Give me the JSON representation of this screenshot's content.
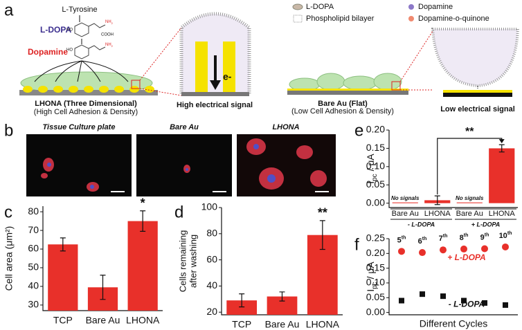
{
  "diagram": {
    "panel_label": "a",
    "precursor": "L-Tyrosine",
    "ldopa": "L-DOPA",
    "dopamine": "Dopamine",
    "ho": "HO",
    "nh2": "NH",
    "two": "2",
    "cooh": "COOH",
    "lhona_title": "LHONA (Three Dimensional)",
    "lhona_sub": "(High Cell Adhesion & Density)",
    "high_signal": "High electrical signal",
    "electron": "e-",
    "bare_title": "Bare Au (Flat)",
    "bare_sub": "(Low Cell Adhesion & Density)",
    "low_signal": "Low electrical signal",
    "legend": [
      "L-DOPA",
      "Dopamine",
      "Phospholipid bilayer",
      "Dopamine-o-quinone"
    ]
  },
  "micrographs": {
    "panel_label": "b",
    "titles": [
      "Tissue Culture plate",
      "Bare Au",
      "LHONA"
    ]
  },
  "chart_data": [
    {
      "type": "bar",
      "panel_label": "c",
      "ylabel": "Cell area (μm²)",
      "categories": [
        "TCP",
        "Bare Au",
        "LHONA"
      ],
      "values": [
        62.5,
        39.5,
        75
      ],
      "errors": [
        3.5,
        6.5,
        5.5
      ],
      "color": "#e8302a",
      "ylim": [
        27,
        83
      ],
      "yticks": [
        30,
        40,
        50,
        60,
        70,
        80
      ],
      "annotation": "*"
    },
    {
      "type": "bar",
      "panel_label": "d",
      "ylabel": [
        "Cells remaining",
        "after washing"
      ],
      "categories": [
        "TCP",
        "Bare Au",
        "LHONA"
      ],
      "values": [
        29,
        32,
        79
      ],
      "errors": [
        5,
        3.5,
        11
      ],
      "color": "#e8302a",
      "ylim": [
        18,
        100
      ],
      "yticks": [
        20,
        40,
        60,
        80,
        100
      ],
      "annotation": "**"
    },
    {
      "type": "bar",
      "panel_label": "e",
      "ylabel": {
        "main": "I",
        "sub": "pc",
        "unit": " / μA"
      },
      "categories": [
        "Bare Au",
        "LHONA",
        "Bare Au",
        "LHONA"
      ],
      "values": [
        0.002,
        0.008,
        0.002,
        0.15
      ],
      "errors": [
        null,
        0.012,
        null,
        0.01
      ],
      "notes": [
        "No signals",
        null,
        "No signals",
        null
      ],
      "groups": [
        "- L-DOPA",
        "+ L-DOPA"
      ],
      "color": "#e8302a",
      "ylim": [
        -0.012,
        0.2
      ],
      "yticks": [
        {
          "value": 0,
          "label": "0.00"
        },
        {
          "value": 0.05,
          "label": "0.05"
        },
        {
          "value": 0.1,
          "label": "0.10"
        },
        {
          "value": 0.15,
          "label": "0.15"
        },
        {
          "value": 0.2,
          "label": "0.20"
        }
      ],
      "annotation": "**"
    },
    {
      "type": "scatter",
      "panel_label": "f",
      "ylabel": {
        "main": "I",
        "sub": "pc",
        "unit": " / μA"
      },
      "xlabel": "Different Cycles",
      "x": [
        5,
        6,
        7,
        8,
        9,
        10
      ],
      "ordinal_suffix": "th",
      "xlim": [
        4.4,
        10.6
      ],
      "series": [
        {
          "name": "+ L-DOPA",
          "color": "#e8302a",
          "marker": "circle",
          "values": [
            0.207,
            0.203,
            0.212,
            0.215,
            0.216,
            0.222
          ]
        },
        {
          "name": "- L-DOPA",
          "color": "#111111",
          "marker": "square",
          "values": [
            0.04,
            0.062,
            0.055,
            0.04,
            0.032,
            0.025
          ]
        }
      ],
      "ylim": [
        -0.008,
        0.25
      ],
      "yticks": [
        {
          "value": 0,
          "label": "0.00"
        },
        {
          "value": 0.05,
          "label": "0.05"
        },
        {
          "value": 0.1,
          "label": "0.10"
        },
        {
          "value": 0.15,
          "label": "0.15"
        },
        {
          "value": 0.2,
          "label": "0.20"
        },
        {
          "value": 0.25,
          "label": "0.25"
        }
      ]
    }
  ]
}
